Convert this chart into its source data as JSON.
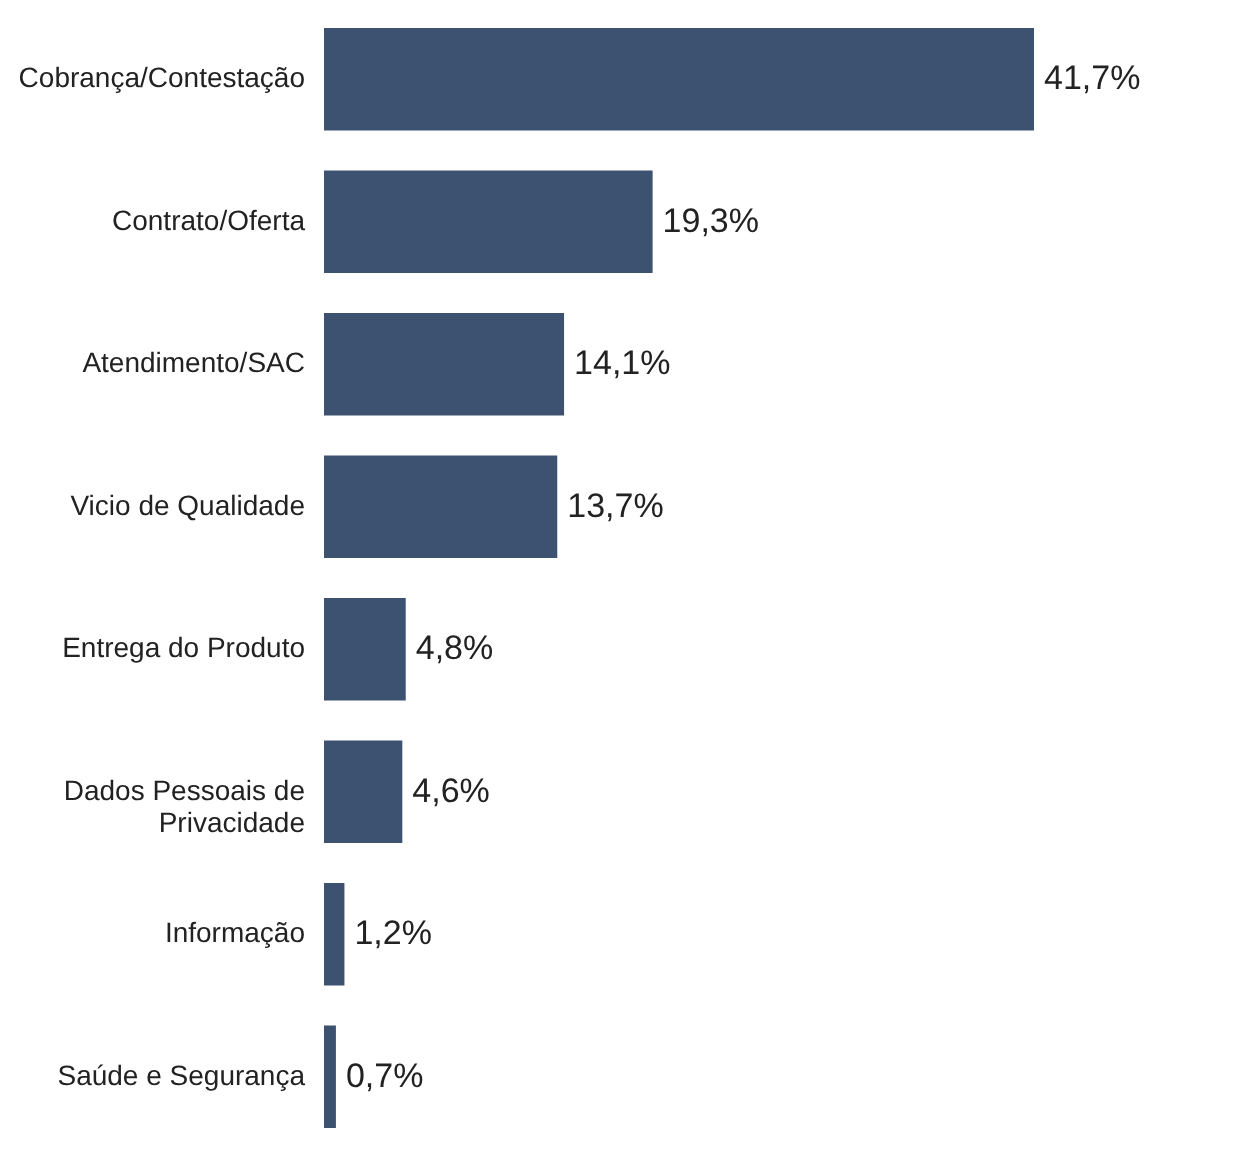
{
  "chart_data": {
    "type": "bar",
    "orientation": "horizontal",
    "categories": [
      "Cobrança/Contestação",
      "Contrato/Oferta",
      "Atendimento/SAC",
      "Vicio de Qualidade",
      "Entrega do Produto",
      "Dados Pessoais de Privacidade",
      "Informação",
      "Saúde e Segurança"
    ],
    "values": [
      41.7,
      19.3,
      14.1,
      13.7,
      4.8,
      4.6,
      1.2,
      0.7
    ],
    "value_labels": [
      "41,7%",
      "19,3%",
      "14,1%",
      "13,7%",
      "4,8%",
      "4,6%",
      "1,2%",
      "0,7%"
    ],
    "color": "#3d5170"
  }
}
